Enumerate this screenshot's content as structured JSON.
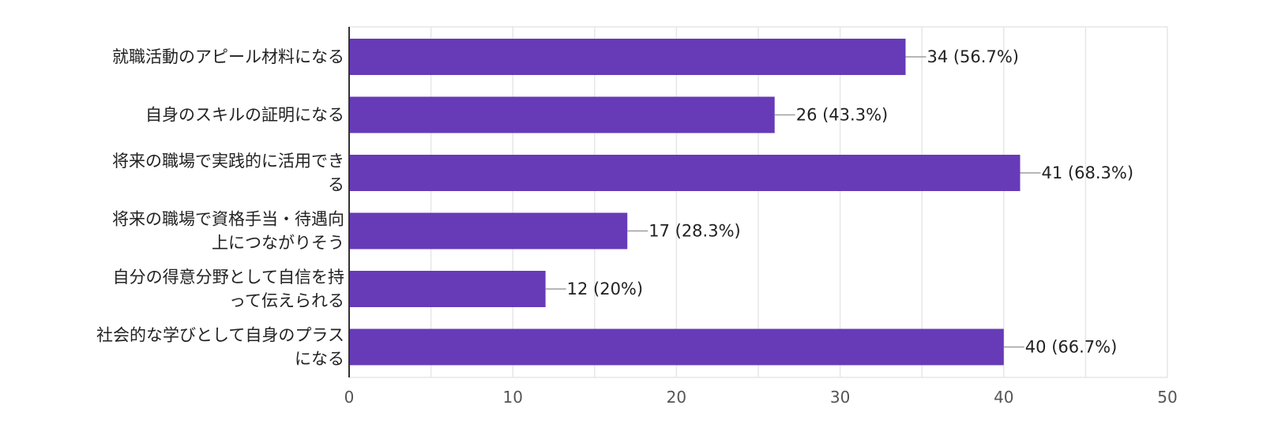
{
  "colors": {
    "bar": "#673ab7",
    "grid": "#e6e6e6",
    "axis": "#333333",
    "text": "#222222"
  },
  "chart_data": {
    "type": "bar",
    "orientation": "horizontal",
    "categories": [
      [
        "就職活動のアピール材料になる"
      ],
      [
        "自身のスキルの証明になる"
      ],
      [
        "将来の職場で実践的に活用でき",
        "る"
      ],
      [
        "将来の職場で資格手当・待遇向",
        "上につながりそう"
      ],
      [
        "自分の得意分野として自信を持",
        "って伝えられる"
      ],
      [
        "社会的な学びとして自身のプラス",
        "になる"
      ]
    ],
    "values": [
      34,
      26,
      41,
      17,
      12,
      40
    ],
    "data_labels": [
      "34 (56.7%)",
      "26 (43.3%)",
      "41 (68.3%)",
      "17 (28.3%)",
      "12 (20%)",
      "40 (66.7%)"
    ],
    "xlim": [
      0,
      50
    ],
    "major_ticks": [
      0,
      10,
      20,
      30,
      40,
      50
    ],
    "minor_gridlines": [
      5,
      15,
      25,
      35,
      45
    ],
    "grid": true,
    "legend": "none"
  }
}
